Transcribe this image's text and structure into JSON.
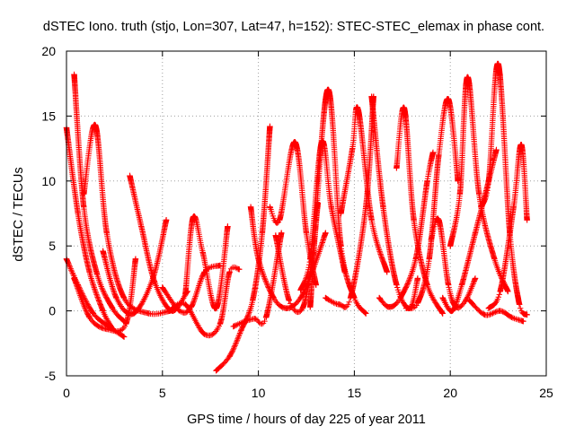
{
  "chart_data": {
    "type": "scatter",
    "title": "dSTEC Iono. truth (stjo, Lon=307, Lat=47, h=152): STEC-STEC_elemax in phase cont.",
    "xlabel": "GPS time / hours of day 225 of year 2011",
    "ylabel": "dSTEC  / TECUs",
    "xlim": [
      0,
      25
    ],
    "ylim": [
      -5,
      20
    ],
    "x_ticks": [
      0,
      5,
      10,
      15,
      20,
      25
    ],
    "y_ticks": [
      -5,
      0,
      5,
      10,
      15,
      20
    ],
    "grid": true,
    "marker": "+",
    "series_color": "#ff0000",
    "series": [
      {
        "x": [
          0.0,
          0.6,
          1.2,
          1.9,
          2.4
        ],
        "y": [
          14.1,
          7.5,
          3.0,
          0.0,
          -1.4
        ]
      },
      {
        "x": [
          0.0,
          0.6,
          1.4,
          2.2,
          3.0
        ],
        "y": [
          4.0,
          2.0,
          -0.2,
          -1.2,
          -2.0
        ]
      },
      {
        "x": [
          0.4,
          1.2,
          2.1,
          3.1,
          3.6
        ],
        "y": [
          2.5,
          -0.5,
          -1.4,
          -1.0,
          4.0
        ]
      },
      {
        "x": [
          0.4,
          0.9,
          1.6,
          2.4,
          3.0
        ],
        "y": [
          18.2,
          8.0,
          2.8,
          0.2,
          -0.8
        ]
      },
      {
        "x": [
          0.9,
          1.5,
          2.1,
          3.0,
          4.3,
          5.4
        ],
        "y": [
          9.0,
          14.3,
          6.0,
          1.0,
          -0.2,
          0.0
        ]
      },
      {
        "x": [
          1.9,
          2.6,
          3.5,
          4.5,
          5.2
        ],
        "y": [
          4.6,
          1.0,
          -0.2,
          2.5,
          7.0
        ]
      },
      {
        "x": [
          3.3,
          3.9,
          4.6,
          5.5,
          6.3
        ],
        "y": [
          10.4,
          6.5,
          2.2,
          0.0,
          1.5
        ]
      },
      {
        "x": [
          5.0,
          5.9,
          6.5,
          7.2,
          8.0
        ],
        "y": [
          1.8,
          0.0,
          0.3,
          3.0,
          3.5
        ]
      },
      {
        "x": [
          6.2,
          6.6,
          7.1,
          7.8,
          8.4
        ],
        "y": [
          1.3,
          7.2,
          4.5,
          0.2,
          6.5
        ]
      },
      {
        "x": [
          5.5,
          6.2,
          7.2,
          8.0,
          8.5,
          9.0
        ],
        "y": [
          0.2,
          0.5,
          -1.8,
          -1.0,
          3.0,
          3.2
        ]
      },
      {
        "x": [
          7.8,
          8.5,
          9.1,
          9.7,
          10.2,
          10.6
        ],
        "y": [
          -4.6,
          -3.5,
          -1.5,
          0.8,
          6.0,
          14.2
        ]
      },
      {
        "x": [
          8.7,
          9.3,
          9.8,
          10.4,
          11.2
        ],
        "y": [
          -1.2,
          -0.8,
          -0.6,
          -0.5,
          6.0
        ]
      },
      {
        "x": [
          9.6,
          10.0,
          10.8,
          11.5,
          12.2,
          12.8,
          13.5
        ],
        "y": [
          8.0,
          4.0,
          1.0,
          0.2,
          1.0,
          3.0,
          6.0
        ]
      },
      {
        "x": [
          10.9,
          11.6,
          12.3,
          12.8,
          13.1
        ],
        "y": [
          5.8,
          0.8,
          0.2,
          4.0,
          8.3
        ]
      },
      {
        "x": [
          10.6,
          11.1,
          11.9,
          12.5,
          13.0
        ],
        "y": [
          8.0,
          7.0,
          13.0,
          6.0,
          2.0
        ]
      },
      {
        "x": [
          12.2,
          12.7,
          13.3,
          13.8,
          14.5
        ],
        "y": [
          1.6,
          4.0,
          13.0,
          8.0,
          3.0
        ]
      },
      {
        "x": [
          12.7,
          13.6,
          14.3,
          15.0,
          15.6
        ],
        "y": [
          0.3,
          17.0,
          5.0,
          1.0,
          -0.2
        ]
      },
      {
        "x": [
          14.3,
          14.9,
          15.2,
          15.9,
          16.7
        ],
        "y": [
          7.5,
          12.5,
          15.5,
          7.0,
          3.0
        ]
      },
      {
        "x": [
          13.5,
          14.2,
          14.8,
          15.6,
          16.0
        ],
        "y": [
          1.0,
          0.5,
          1.0,
          8.0,
          16.5
        ]
      },
      {
        "x": [
          15.9,
          16.5,
          17.2,
          17.9,
          18.3
        ],
        "y": [
          16.5,
          8.0,
          2.0,
          0.2,
          2.5
        ]
      },
      {
        "x": [
          16.3,
          16.8,
          17.4,
          18.2,
          18.8,
          19.1
        ],
        "y": [
          1.0,
          0.3,
          1.0,
          4.0,
          10.0,
          12.2
        ]
      },
      {
        "x": [
          17.2,
          17.6,
          18.1,
          18.8,
          19.6
        ],
        "y": [
          11.0,
          15.6,
          7.0,
          2.0,
          -0.2
        ]
      },
      {
        "x": [
          17.7,
          18.3,
          18.9,
          19.4,
          19.9,
          20.4
        ],
        "y": [
          0.2,
          0.6,
          4.0,
          12.0,
          16.3,
          10.0
        ]
      },
      {
        "x": [
          19.0,
          19.4,
          19.9,
          20.3,
          20.8,
          21.3
        ],
        "y": [
          5.5,
          7.0,
          2.0,
          0.3,
          0.8,
          2.5
        ]
      },
      {
        "x": [
          20.0,
          20.5,
          20.9,
          21.5,
          22.3,
          23.0
        ],
        "y": [
          5.0,
          9.0,
          18.0,
          9.0,
          4.0,
          1.5
        ]
      },
      {
        "x": [
          19.6,
          20.1,
          20.6,
          21.3,
          22.0,
          22.4
        ],
        "y": [
          1.0,
          0.0,
          2.0,
          6.0,
          10.0,
          12.4
        ]
      },
      {
        "x": [
          21.6,
          22.0,
          22.5,
          23.1,
          23.6,
          24.0
        ],
        "y": [
          8.0,
          10.0,
          19.0,
          6.0,
          0.5,
          -0.3
        ]
      },
      {
        "x": [
          22.0,
          22.6,
          23.3,
          23.7,
          24.0
        ],
        "y": [
          0.2,
          1.5,
          8.0,
          12.8,
          7.0
        ]
      },
      {
        "x": [
          21.0,
          21.8,
          22.6,
          23.2,
          23.8
        ],
        "y": [
          0.8,
          -0.3,
          0.0,
          -0.5,
          -0.8
        ]
      }
    ]
  }
}
